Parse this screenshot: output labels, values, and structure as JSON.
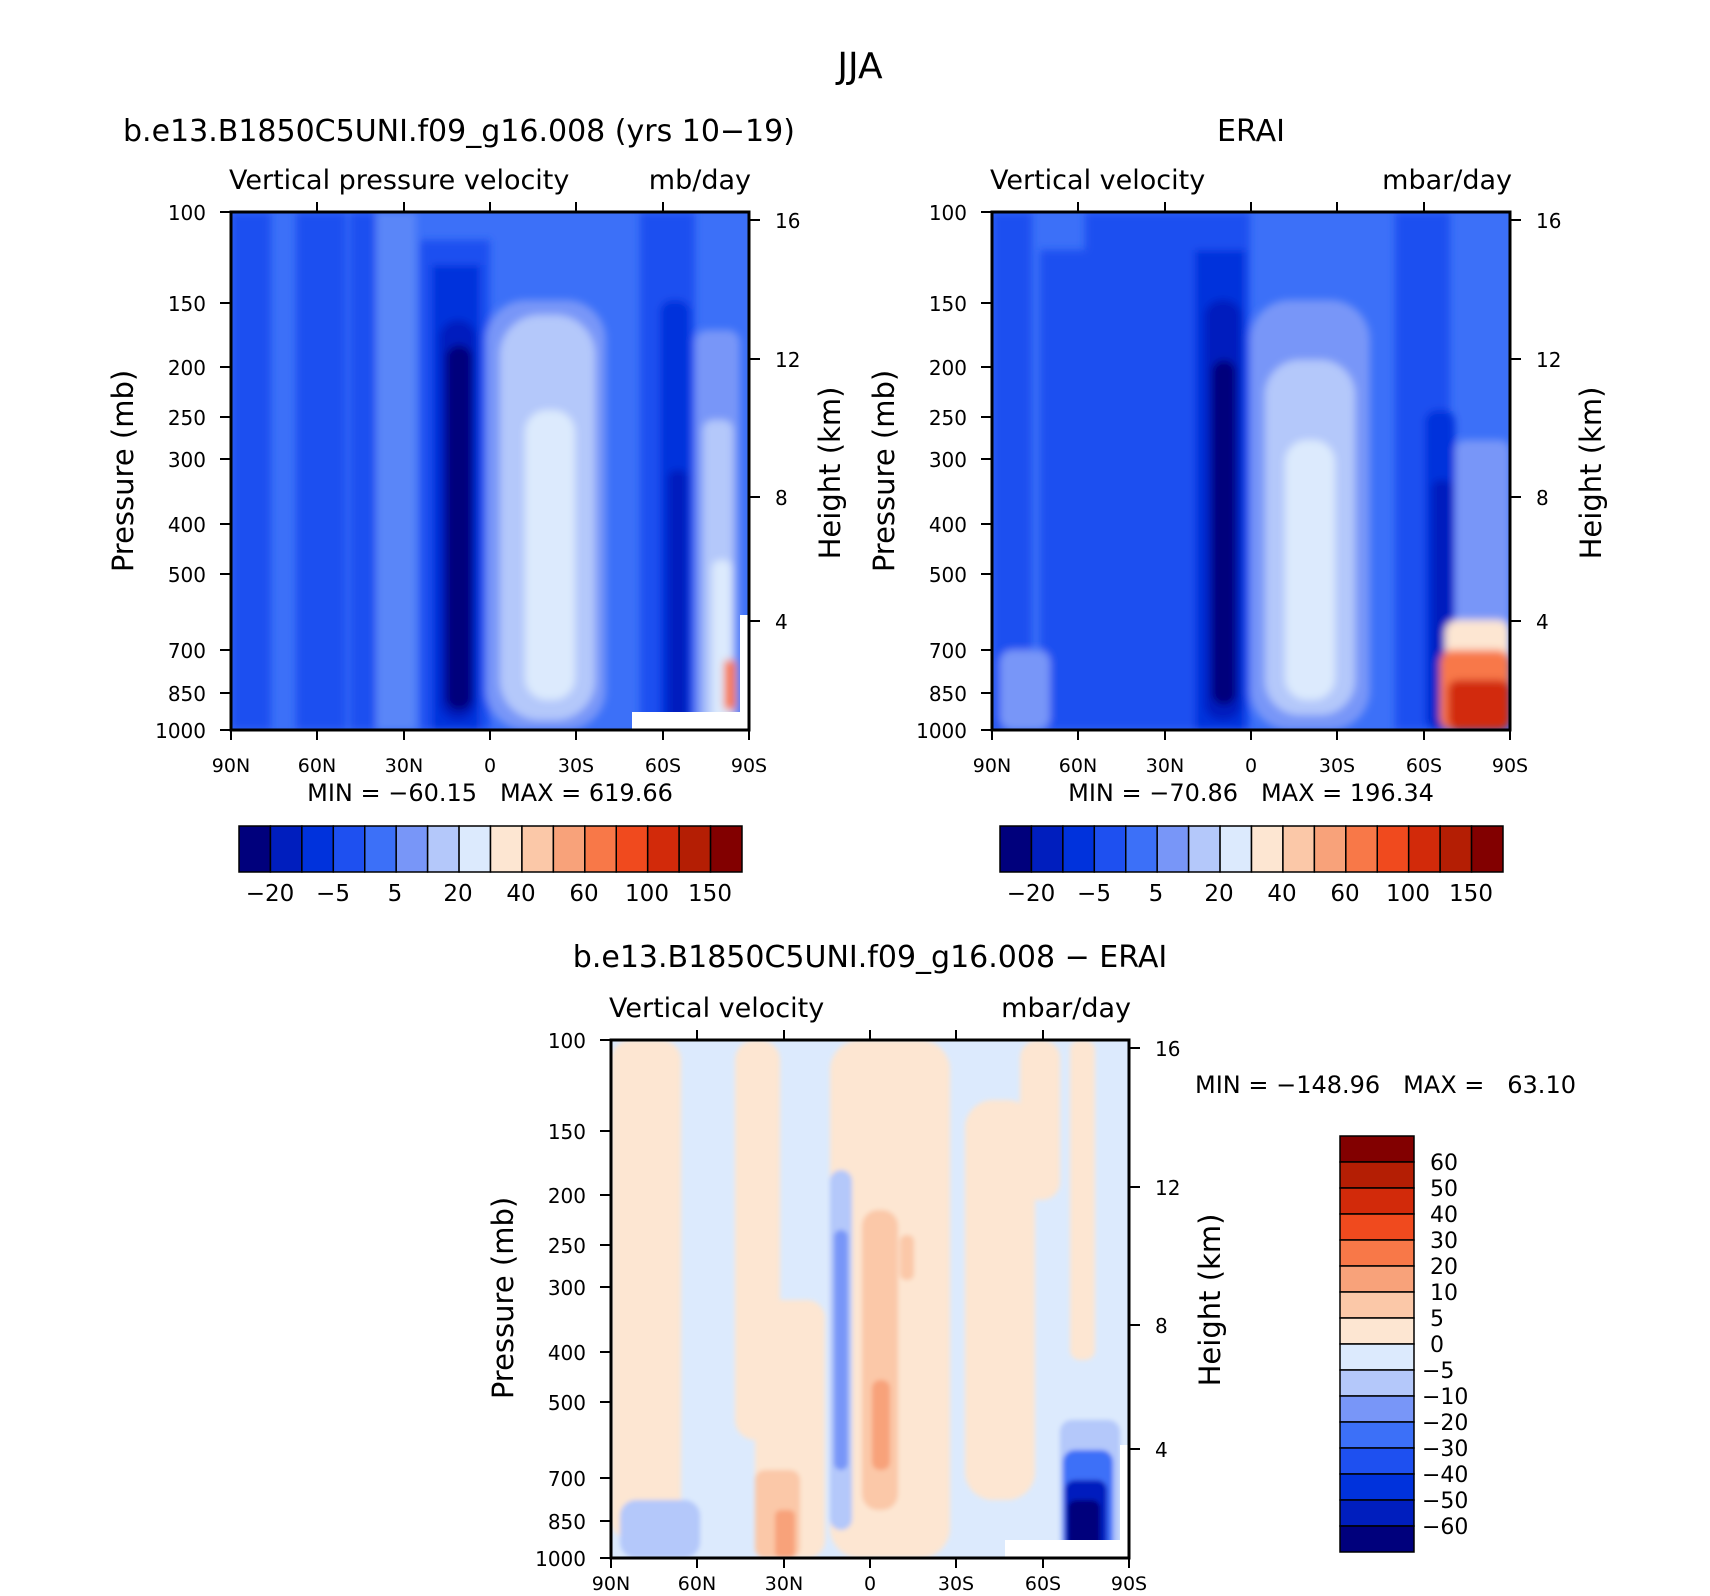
{
  "figure": {
    "title": "JJA"
  },
  "colors": {
    "model": [
      "#00007c",
      "#001ebe",
      "#0032dc",
      "#1e50f0",
      "#3c70f8",
      "#7896f8",
      "#b4c8fa",
      "#dceafd",
      "#fde6d2",
      "#fbc8a8",
      "#f8a27a",
      "#f87848",
      "#f04a1e",
      "#d22a0a",
      "#b41e04",
      "#820000"
    ],
    "diff": [
      "#00007c",
      "#001ebe",
      "#0032dc",
      "#1e50f0",
      "#3c70f8",
      "#7896f8",
      "#b4c8fa",
      "#dceafd",
      "#fde6d2",
      "#fbc8a8",
      "#f8a27a",
      "#f87848",
      "#f04a1e",
      "#d22a0a",
      "#b41e04",
      "#820000"
    ]
  },
  "chart_data": [
    {
      "type": "heatmap",
      "title": "b.e13.B1850C5UNI.f09_g16.008 (yrs 10−19)",
      "subtitle_left": "Vertical pressure velocity",
      "subtitle_right": "mb/day",
      "ylabel": "Pressure (mb)",
      "ylabel_right": "Height (km)",
      "xticks": [
        "90N",
        "60N",
        "30N",
        "0",
        "30S",
        "60S",
        "90S"
      ],
      "yticks": [
        "100",
        "150",
        "200",
        "250",
        "300",
        "400",
        "500",
        "700",
        "850",
        "1000"
      ],
      "yticks_right": [
        "16",
        "12",
        "8",
        "4"
      ],
      "min_max": "MIN = −60.15   MAX = 619.66",
      "colorbar_labels": [
        "−20",
        "−5",
        "5",
        "20",
        "40",
        "60",
        "100",
        "150"
      ],
      "field": {
        "min": -60.15,
        "max": 619.66
      }
    },
    {
      "type": "heatmap",
      "title": "ERAI",
      "subtitle_left": "Vertical velocity",
      "subtitle_right": "mbar/day",
      "ylabel": "Pressure (mb)",
      "ylabel_right": "Height (km)",
      "xticks": [
        "90N",
        "60N",
        "30N",
        "0",
        "30S",
        "60S",
        "90S"
      ],
      "yticks": [
        "100",
        "150",
        "200",
        "250",
        "300",
        "400",
        "500",
        "700",
        "850",
        "1000"
      ],
      "yticks_right": [
        "16",
        "12",
        "8",
        "4"
      ],
      "min_max": "MIN = −70.86   MAX = 196.34",
      "colorbar_labels": [
        "−20",
        "−5",
        "5",
        "20",
        "40",
        "60",
        "100",
        "150"
      ],
      "field": {
        "min": -70.86,
        "max": 196.34
      }
    },
    {
      "type": "heatmap",
      "title": "b.e13.B1850C5UNI.f09_g16.008 − ERAI",
      "subtitle_left": "Vertical velocity",
      "subtitle_right": "mbar/day",
      "ylabel": "Pressure (mb)",
      "ylabel_right": "Height (km)",
      "xticks": [
        "90N",
        "60N",
        "30N",
        "0",
        "30S",
        "60S",
        "90S"
      ],
      "yticks": [
        "100",
        "150",
        "200",
        "250",
        "300",
        "400",
        "500",
        "700",
        "850",
        "1000"
      ],
      "yticks_right": [
        "16",
        "12",
        "8",
        "4"
      ],
      "min_max": "MIN = −148.96   MAX =   63.10",
      "colorbar_labels": [
        "60",
        "50",
        "40",
        "30",
        "20",
        "10",
        "5",
        "0",
        "−5",
        "−10",
        "−20",
        "−30",
        "−40",
        "−50",
        "−60"
      ],
      "field": {
        "min": -148.96,
        "max": 63.1
      }
    }
  ]
}
